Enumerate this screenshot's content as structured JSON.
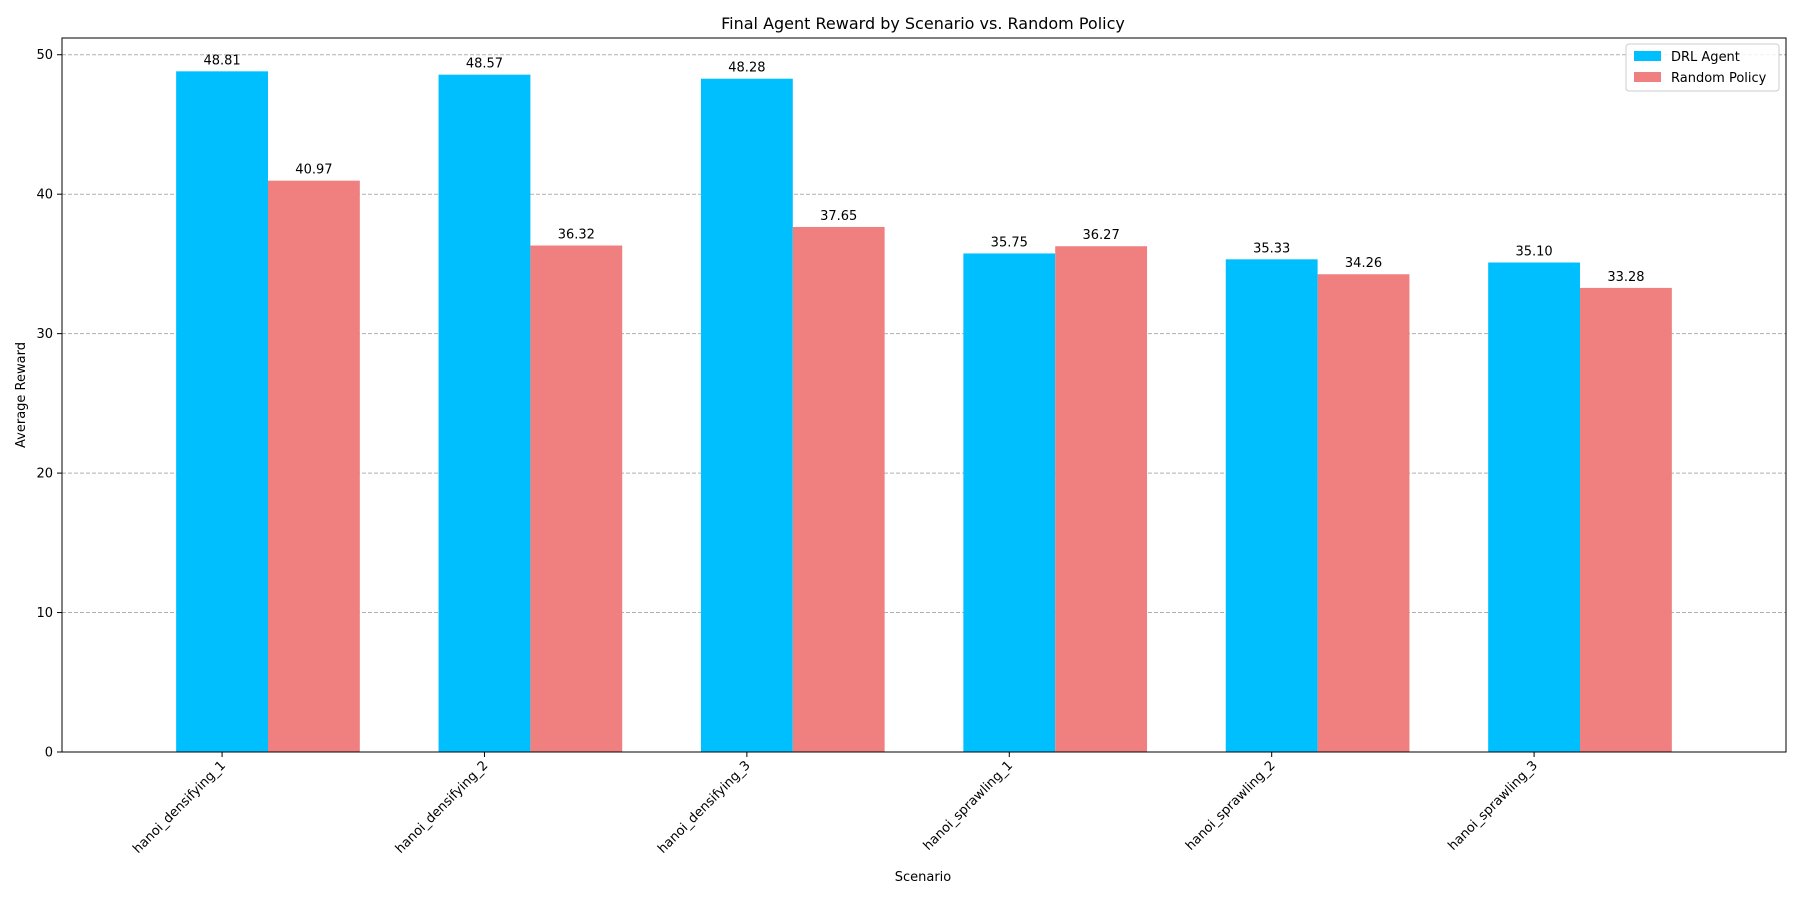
{
  "chart_data": {
    "type": "bar",
    "title": "Final Agent Reward by Scenario vs. Random Policy",
    "xlabel": "Scenario",
    "ylabel": "Average Reward",
    "ylim": [
      0,
      51.2
    ],
    "yticks": [
      0,
      10,
      20,
      30,
      40,
      50
    ],
    "grid": "y-dashed",
    "legend_position": "top-right",
    "categories": [
      "hanoi_densifying_1",
      "hanoi_densifying_2",
      "hanoi_densifying_3",
      "hanoi_sprawling_1",
      "hanoi_sprawling_2",
      "hanoi_sprawling_3"
    ],
    "series": [
      {
        "name": "DRL Agent",
        "color": "#00bfff",
        "values": [
          48.81,
          48.57,
          48.28,
          35.75,
          35.33,
          35.1
        ],
        "labels": [
          "48.81",
          "48.57",
          "48.28",
          "35.75",
          "35.33",
          "35.10"
        ]
      },
      {
        "name": "Random Policy",
        "color": "#f08080",
        "values": [
          40.97,
          36.32,
          37.65,
          36.27,
          34.26,
          33.28
        ],
        "labels": [
          "40.97",
          "36.32",
          "37.65",
          "36.27",
          "34.26",
          "33.28"
        ]
      }
    ]
  }
}
